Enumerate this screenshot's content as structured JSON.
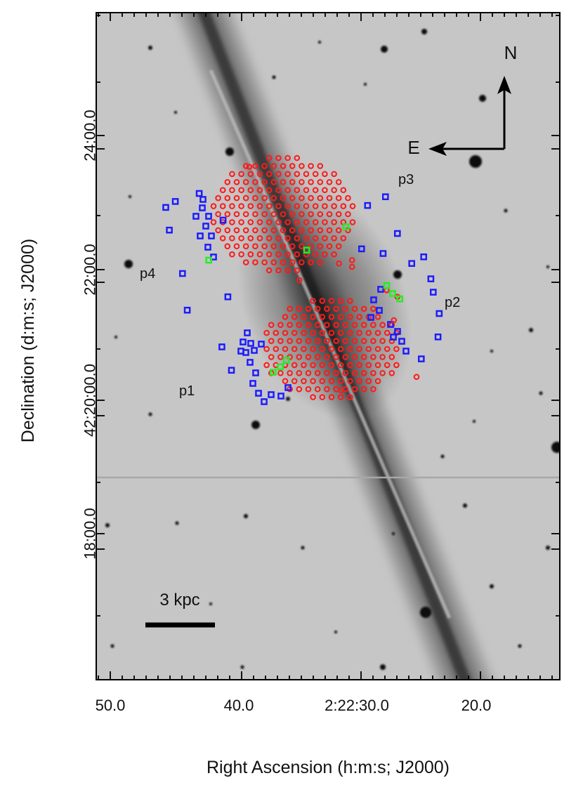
{
  "chart_data": {
    "type": "scatter",
    "xlabel": "Right Ascension (h:m:s; J2000)",
    "ylabel": "Declination (d:m:s; J2000)",
    "x_tick_labels": [
      "50.0",
      "40.0",
      "2:22:30.0",
      "20.0"
    ],
    "y_tick_labels": [
      "24:00.0",
      "22:00.0",
      "42:20:00.0",
      "18:00.0"
    ],
    "annotations": {
      "north": "N",
      "east": "E",
      "scale_bar": "3 kpc",
      "pointings": [
        "p1",
        "p2",
        "p3",
        "p4"
      ]
    },
    "marker_colors": {
      "fiber_on_galaxy": "#ff1a1a",
      "sky_fiber": "#1a1aff",
      "flagged_fiber": "#22ee22"
    },
    "series": [
      {
        "marker": "circle",
        "color": "#ff1a1a",
        "points": [
          [
            39.0,
            23.5
          ],
          [
            25.0,
            20.35
          ],
          [
            30.4,
            22.0
          ],
          [
            30.4,
            22.1
          ],
          [
            31.5,
            22.05
          ],
          [
            34.8,
            21.8
          ],
          [
            31.3,
            20.15
          ],
          [
            27.5,
            21.65
          ],
          [
            26.9,
            21.2
          ],
          [
            26.6,
            21.55
          ]
        ]
      },
      {
        "marker": "square",
        "color": "#1a1aff",
        "points": [
          [
            46.0,
            22.89
          ],
          [
            45.7,
            22.55
          ],
          [
            45.2,
            22.98
          ],
          [
            44.6,
            21.9
          ],
          [
            44.2,
            21.35
          ],
          [
            43.2,
            23.1
          ],
          [
            41.2,
            22.7
          ],
          [
            40.8,
            21.55
          ],
          [
            41.3,
            20.8
          ],
          [
            40.5,
            20.45
          ],
          [
            29.6,
            22.27
          ],
          [
            29.1,
            22.92
          ],
          [
            27.6,
            23.05
          ],
          [
            26.6,
            22.5
          ],
          [
            27.8,
            22.2
          ],
          [
            25.4,
            22.05
          ],
          [
            24.4,
            22.15
          ],
          [
            23.8,
            21.82
          ],
          [
            23.6,
            21.62
          ],
          [
            23.1,
            21.3
          ],
          [
            24.6,
            20.62
          ],
          [
            23.2,
            20.95
          ]
        ]
      },
      {
        "marker": "square",
        "color": "#22ee22",
        "points": [
          [
            30.9,
            22.6
          ],
          [
            34.2,
            22.25
          ],
          [
            42.4,
            22.1
          ],
          [
            27.5,
            21.72
          ],
          [
            27.0,
            21.6
          ],
          [
            26.4,
            21.52
          ],
          [
            35.9,
            20.6
          ],
          [
            37.0,
            20.42
          ],
          [
            36.4,
            20.5
          ]
        ]
      }
    ]
  }
}
